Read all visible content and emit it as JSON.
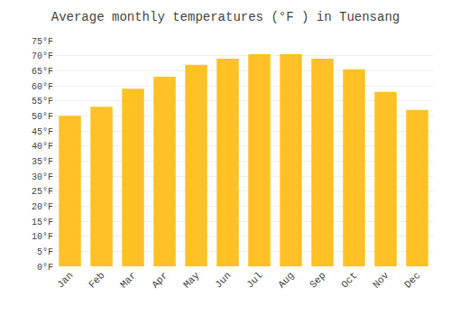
{
  "chart_data": {
    "type": "bar",
    "title": "Average monthly temperatures (°F ) in Tuensang",
    "categories": [
      "Jan",
      "Feb",
      "Mar",
      "Apr",
      "May",
      "Jun",
      "Jul",
      "Aug",
      "Sep",
      "Oct",
      "Nov",
      "Dec"
    ],
    "values": [
      50,
      53,
      59,
      63,
      67,
      69,
      70.5,
      70.5,
      69,
      65.5,
      58,
      52
    ],
    "color": "#FFC125",
    "ylim": [
      0,
      75
    ],
    "yticks": [
      {
        "value": 0,
        "label": "0°F"
      },
      {
        "value": 5,
        "label": "5°F"
      },
      {
        "value": 10,
        "label": "10°F"
      },
      {
        "value": 15,
        "label": "15°F"
      },
      {
        "value": 20,
        "label": "20°F"
      },
      {
        "value": 25,
        "label": "25°F"
      },
      {
        "value": 30,
        "label": "30°F"
      },
      {
        "value": 35,
        "label": "35°F"
      },
      {
        "value": 40,
        "label": "40°F"
      },
      {
        "value": 45,
        "label": "45°F"
      },
      {
        "value": 50,
        "label": "50°F"
      },
      {
        "value": 55,
        "label": "55°F"
      },
      {
        "value": 60,
        "label": "60°F"
      },
      {
        "value": 65,
        "label": "65°F"
      },
      {
        "value": 70,
        "label": "70°F"
      },
      {
        "value": 75,
        "label": "75°F"
      }
    ],
    "grid": true
  }
}
